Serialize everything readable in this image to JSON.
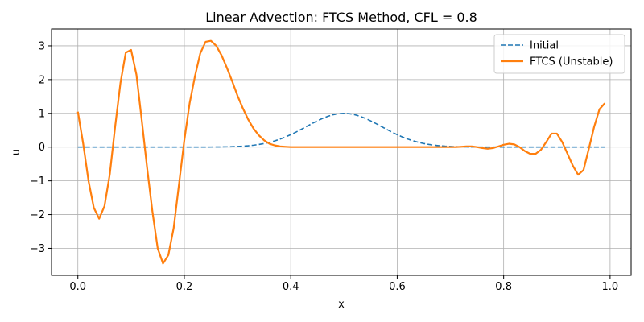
{
  "chart_data": {
    "type": "line",
    "title": "Linear Advection: FTCS Method, CFL = 0.8",
    "xlabel": "x",
    "ylabel": "u",
    "xlim": [
      -0.0495,
      1.0395
    ],
    "ylim": [
      -3.8,
      3.5
    ],
    "xticks": [
      0.0,
      0.2,
      0.4,
      0.6,
      0.8,
      1.0
    ],
    "xtick_labels": [
      "0.0",
      "0.2",
      "0.4",
      "0.6",
      "0.8",
      "1.0"
    ],
    "yticks": [
      -3,
      -2,
      -1,
      0,
      1,
      2,
      3
    ],
    "ytick_labels": [
      "−3",
      "−2",
      "−1",
      "0",
      "1",
      "2",
      "3"
    ],
    "grid": true,
    "legend_position": "top-right",
    "series": [
      {
        "name": "Initial",
        "color": "#1f77b4",
        "style": "dashed",
        "gaussian": {
          "center": 0.5,
          "width": 0.1,
          "amplitude": 1.0
        },
        "x_range": [
          0.0,
          0.99
        ],
        "n_points": 100
      },
      {
        "name": "FTCS (Unstable)",
        "color": "#ff7f0e",
        "style": "solid",
        "x": [
          0.0,
          0.01,
          0.02,
          0.03,
          0.04,
          0.05,
          0.06,
          0.07,
          0.08,
          0.09,
          0.1,
          0.11,
          0.12,
          0.13,
          0.14,
          0.15,
          0.16,
          0.17,
          0.18,
          0.19,
          0.2,
          0.21,
          0.22,
          0.23,
          0.24,
          0.25,
          0.26,
          0.27,
          0.28,
          0.29,
          0.3,
          0.31,
          0.32,
          0.33,
          0.34,
          0.35,
          0.36,
          0.37,
          0.38,
          0.39,
          0.4,
          0.41,
          0.42,
          0.43,
          0.44,
          0.45,
          0.46,
          0.47,
          0.48,
          0.49,
          0.5,
          0.51,
          0.52,
          0.53,
          0.54,
          0.55,
          0.56,
          0.57,
          0.58,
          0.59,
          0.6,
          0.61,
          0.62,
          0.63,
          0.64,
          0.65,
          0.66,
          0.67,
          0.68,
          0.69,
          0.7,
          0.71,
          0.72,
          0.73,
          0.74,
          0.75,
          0.76,
          0.77,
          0.78,
          0.79,
          0.8,
          0.81,
          0.82,
          0.83,
          0.84,
          0.85,
          0.86,
          0.87,
          0.88,
          0.89,
          0.9,
          0.91,
          0.92,
          0.93,
          0.94,
          0.95,
          0.96,
          0.97,
          0.98,
          0.99
        ],
        "y": [
          1.05,
          0.1,
          -1.0,
          -1.8,
          -2.12,
          -1.75,
          -0.8,
          0.6,
          1.9,
          2.8,
          2.88,
          2.15,
          0.8,
          -0.6,
          -1.9,
          -3.0,
          -3.45,
          -3.2,
          -2.4,
          -1.1,
          0.2,
          1.3,
          2.1,
          2.78,
          3.12,
          3.15,
          3.0,
          2.72,
          2.35,
          1.95,
          1.52,
          1.15,
          0.82,
          0.55,
          0.35,
          0.2,
          0.1,
          0.05,
          0.02,
          0.01,
          0.0,
          0.0,
          0.0,
          0.0,
          0.0,
          0.0,
          0.0,
          0.0,
          0.0,
          0.0,
          0.0,
          0.0,
          0.0,
          0.0,
          0.0,
          0.0,
          0.0,
          0.0,
          0.0,
          0.0,
          0.0,
          0.0,
          0.0,
          0.0,
          0.0,
          0.0,
          0.0,
          0.0,
          0.0,
          0.0,
          0.0,
          0.0,
          0.01,
          0.02,
          0.02,
          0.0,
          -0.03,
          -0.05,
          -0.03,
          0.02,
          0.07,
          0.1,
          0.08,
          0.0,
          -0.12,
          -0.2,
          -0.2,
          -0.08,
          0.15,
          0.4,
          0.4,
          0.15,
          -0.2,
          -0.55,
          -0.82,
          -0.68,
          -0.05,
          0.6,
          1.12,
          1.3
        ]
      }
    ]
  }
}
